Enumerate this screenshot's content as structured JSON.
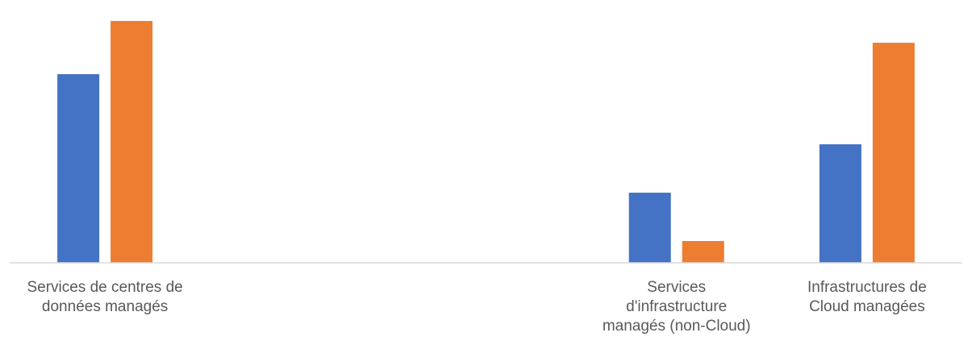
{
  "chart_data": {
    "type": "bar",
    "categories": [
      [
        "Services de centres de",
        "données managés"
      ],
      [],
      [],
      [
        "Services",
        "d'infrastructure",
        "managés (non-Cloud)"
      ],
      [
        "Infrastructures de",
        "Cloud managées"
      ]
    ],
    "series": [
      {
        "color": "#4472C4",
        "values": [
          78,
          0,
          0,
          29,
          49
        ]
      },
      {
        "color": "#ED7D31",
        "values": [
          100,
          0,
          0,
          9,
          91
        ]
      }
    ],
    "ylim": [
      0,
      100
    ],
    "grid": false,
    "legend": "none"
  }
}
